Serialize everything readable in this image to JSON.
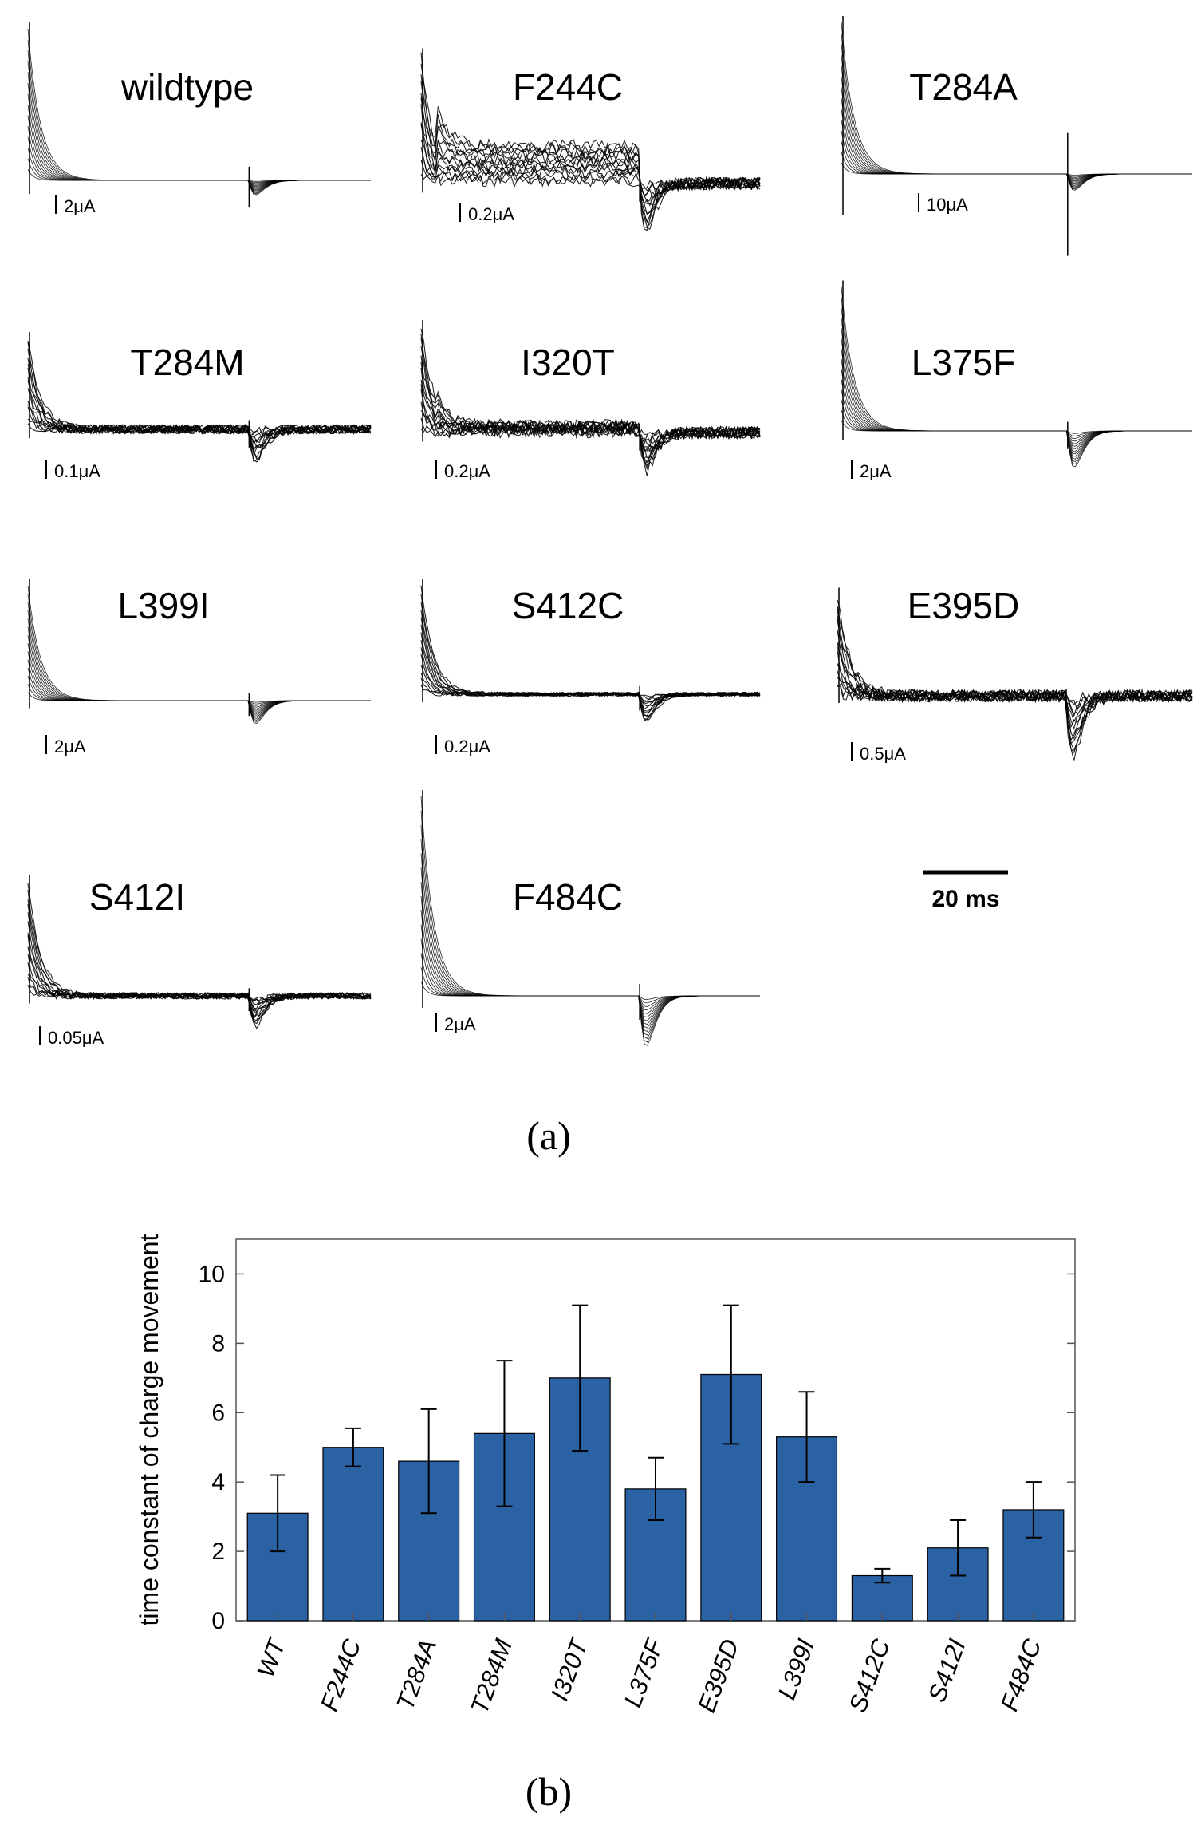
{
  "panel_a": {
    "caption": "(a)",
    "time_scale_label": "20 ms",
    "traces": [
      {
        "name": "wildtype",
        "scale": "2μA",
        "peak": 1.0,
        "capacitive_dip": 0.3,
        "noise": 0.0,
        "off_tail": 0.16,
        "plateau": 0.0
      },
      {
        "name": "F244C",
        "scale": "0.2μA",
        "peak": 0.85,
        "capacitive_dip": 0.2,
        "noise": 0.04,
        "off_tail": 0.52,
        "plateau": 0.25
      },
      {
        "name": "T284A",
        "scale": "10μA",
        "peak": 1.0,
        "capacitive_dip": 0.9,
        "noise": 0.0,
        "off_tail": 0.18,
        "plateau": 0.0
      },
      {
        "name": "T284M",
        "scale": "0.1μA",
        "peak": 0.6,
        "capacitive_dip": 0.2,
        "noise": 0.03,
        "off_tail": 0.35,
        "plateau": 0.0
      },
      {
        "name": "I320T",
        "scale": "0.2μA",
        "peak": 0.7,
        "capacitive_dip": 0.2,
        "noise": 0.04,
        "off_tail": 0.42,
        "plateau": 0.05
      },
      {
        "name": "L375F",
        "scale": "2μA",
        "peak": 0.95,
        "capacitive_dip": 0.2,
        "noise": 0.0,
        "off_tail": 0.4,
        "plateau": 0.0
      },
      {
        "name": "L399I",
        "scale": "2μA",
        "peak": 0.9,
        "capacitive_dip": 0.2,
        "noise": 0.0,
        "off_tail": 0.3,
        "plateau": 0.0
      },
      {
        "name": "S412C",
        "scale": "0.2μA",
        "peak": 0.8,
        "capacitive_dip": 0.2,
        "noise": 0.015,
        "off_tail": 0.35,
        "plateau": 0.0
      },
      {
        "name": "E395D",
        "scale": "0.5μA",
        "peak": 0.85,
        "capacitive_dip": 0.2,
        "noise": 0.05,
        "off_tail": 0.85,
        "plateau": 0.0
      },
      {
        "name": "S412I",
        "scale": "0.05μA",
        "peak": 0.9,
        "capacitive_dip": 0.2,
        "noise": 0.025,
        "off_tail": 0.4,
        "plateau": 0.0
      },
      {
        "name": "F484C",
        "scale": "2μA",
        "peak": 1.0,
        "capacitive_dip": 0.2,
        "noise": 0.0,
        "off_tail": 0.42,
        "plateau": 0.0
      }
    ]
  },
  "panel_b": {
    "caption": "(b)"
  },
  "chart_data": {
    "type": "bar",
    "ylabel": "time constant of charge movement",
    "xlabel": "",
    "ylim": [
      0,
      11
    ],
    "yticks": [
      0,
      2,
      4,
      6,
      8,
      10
    ],
    "grid": false,
    "bar_color": "#2a62a3",
    "categories": [
      "WT",
      "F244C",
      "T284A",
      "T284M",
      "I320T",
      "L375F",
      "E395D",
      "L399I",
      "S412C",
      "S412I",
      "F484C"
    ],
    "values": [
      3.1,
      5.0,
      4.6,
      5.4,
      7.0,
      3.8,
      7.1,
      5.3,
      1.3,
      2.1,
      3.2
    ],
    "errors": [
      1.1,
      0.55,
      1.5,
      2.1,
      2.1,
      0.9,
      2.0,
      1.3,
      0.2,
      0.8,
      0.8
    ]
  }
}
